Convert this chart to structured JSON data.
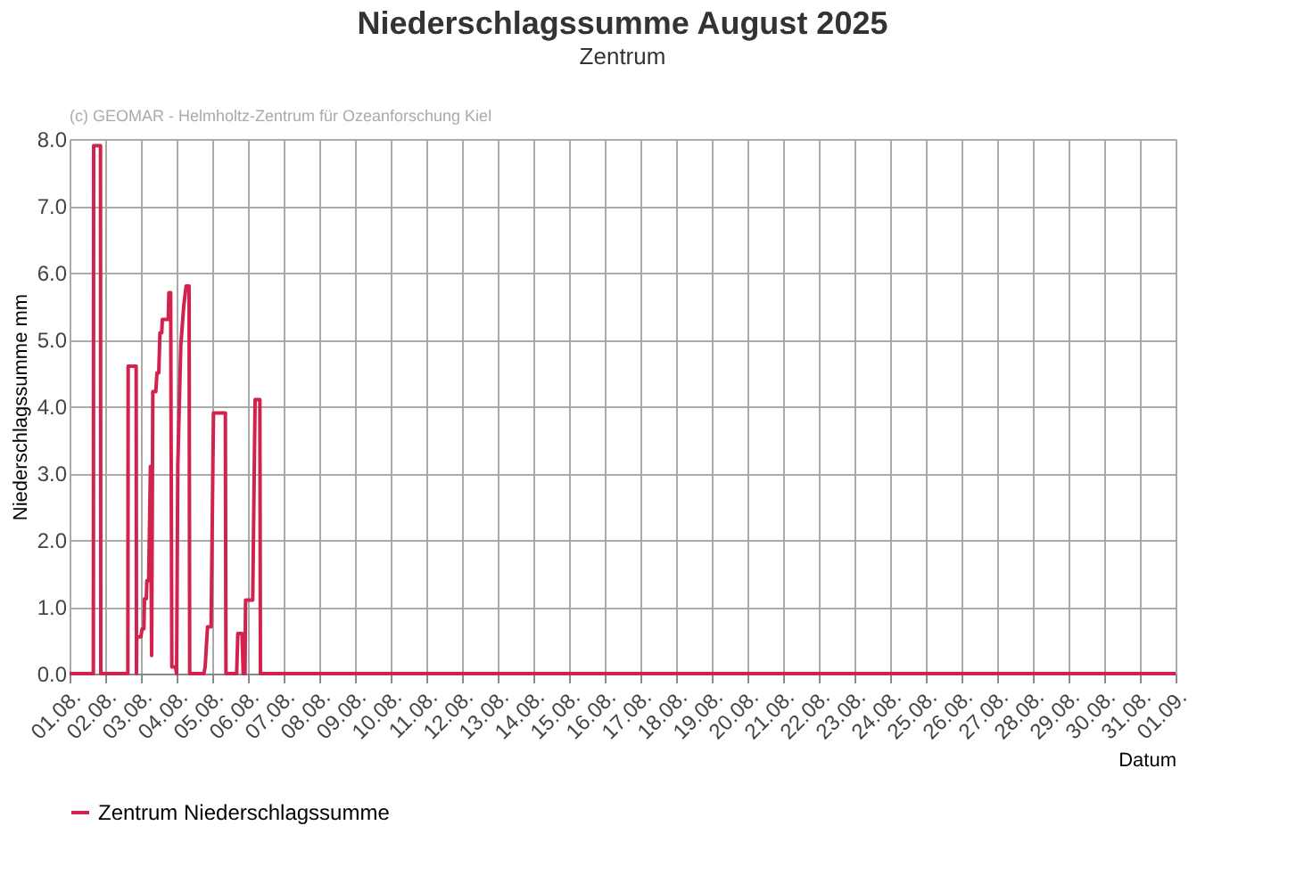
{
  "chart_data": {
    "type": "line",
    "title": "Niederschlagssumme August 2025",
    "subtitle": "Zentrum",
    "xlabel": "Datum",
    "ylabel": "Niederschlagssumme mm",
    "annotations": [
      "(c) GEOMAR - Helmholtz-Zentrum für Ozeanforschung Kiel"
    ],
    "x": [
      "2025-08-01T00:00",
      "2025-08-01T16:00",
      "2025-08-01T16:12",
      "2025-08-01T20:48",
      "2025-08-01T21:00",
      "2025-08-02T15:12",
      "2025-08-02T15:24",
      "2025-08-02T20:48",
      "2025-08-02T21:00",
      "2025-08-02T21:12",
      "2025-08-03T00:00",
      "2025-08-03T00:48",
      "2025-08-03T02:00",
      "2025-08-03T02:24",
      "2025-08-03T03:36",
      "2025-08-03T04:00",
      "2025-08-03T05:12",
      "2025-08-03T06:24",
      "2025-08-03T07:12",
      "2025-08-03T08:00",
      "2025-08-03T10:00",
      "2025-08-03T10:48",
      "2025-08-03T12:00",
      "2025-08-03T12:48",
      "2025-08-03T14:00",
      "2025-08-03T14:24",
      "2025-08-03T18:24",
      "2025-08-03T18:48",
      "2025-08-03T20:00",
      "2025-08-03T20:48",
      "2025-08-03T23:12",
      "2025-08-04T00:00",
      "2025-08-04T00:48",
      "2025-08-04T02:48",
      "2025-08-04T04:48",
      "2025-08-04T06:24",
      "2025-08-04T08:24",
      "2025-08-04T08:48",
      "2025-08-04T18:24",
      "2025-08-04T19:12",
      "2025-08-04T20:48",
      "2025-08-04T23:12",
      "2025-08-05T00:48",
      "2025-08-05T08:48",
      "2025-08-05T09:12",
      "2025-08-05T16:24",
      "2025-08-05T17:12",
      "2025-08-05T20:00",
      "2025-08-05T20:48",
      "2025-08-05T22:00",
      "2025-08-05T22:24",
      "2025-08-06T03:12",
      "2025-08-06T04:48",
      "2025-08-06T08:00",
      "2025-08-06T08:24",
      "2025-09-01T00:00"
    ],
    "series": [
      {
        "name": "Zentrum Niederschlagssumme",
        "color": "#d2224e",
        "values": [
          0,
          0,
          7.9,
          7.9,
          0,
          0,
          4.6,
          4.6,
          0,
          0.55,
          0.55,
          0.67,
          0.67,
          1.12,
          1.12,
          1.39,
          1.39,
          3.1,
          0.27,
          4.22,
          4.22,
          4.5,
          4.5,
          5.1,
          5.1,
          5.3,
          5.3,
          5.7,
          5.7,
          0.1,
          0.1,
          0,
          3.1,
          4.9,
          5.5,
          5.8,
          5.8,
          0,
          0,
          0.1,
          0.7,
          0.7,
          3.9,
          3.9,
          0,
          0,
          0.6,
          0.6,
          0,
          0,
          1.1,
          1.1,
          4.1,
          4.1,
          0,
          0
        ]
      }
    ],
    "xlim": [
      "2025-08-01T00:00",
      "2025-09-01T00:00"
    ],
    "xticks": [
      {
        "value": "2025-08-01",
        "label": "01.08."
      },
      {
        "value": "2025-08-02",
        "label": "02.08."
      },
      {
        "value": "2025-08-03",
        "label": "03.08."
      },
      {
        "value": "2025-08-04",
        "label": "04.08."
      },
      {
        "value": "2025-08-05",
        "label": "05.08."
      },
      {
        "value": "2025-08-06",
        "label": "06.08."
      },
      {
        "value": "2025-08-07",
        "label": "07.08."
      },
      {
        "value": "2025-08-08",
        "label": "08.08."
      },
      {
        "value": "2025-08-09",
        "label": "09.08."
      },
      {
        "value": "2025-08-10",
        "label": "10.08."
      },
      {
        "value": "2025-08-11",
        "label": "11.08."
      },
      {
        "value": "2025-08-12",
        "label": "12.08."
      },
      {
        "value": "2025-08-13",
        "label": "13.08."
      },
      {
        "value": "2025-08-14",
        "label": "14.08."
      },
      {
        "value": "2025-08-15",
        "label": "15.08."
      },
      {
        "value": "2025-08-16",
        "label": "16.08."
      },
      {
        "value": "2025-08-17",
        "label": "17.08."
      },
      {
        "value": "2025-08-18",
        "label": "18.08."
      },
      {
        "value": "2025-08-19",
        "label": "19.08."
      },
      {
        "value": "2025-08-20",
        "label": "20.08."
      },
      {
        "value": "2025-08-21",
        "label": "21.08."
      },
      {
        "value": "2025-08-22",
        "label": "22.08."
      },
      {
        "value": "2025-08-23",
        "label": "23.08."
      },
      {
        "value": "2025-08-24",
        "label": "24.08."
      },
      {
        "value": "2025-08-25",
        "label": "25.08."
      },
      {
        "value": "2025-08-26",
        "label": "26.08."
      },
      {
        "value": "2025-08-27",
        "label": "27.08."
      },
      {
        "value": "2025-08-28",
        "label": "28.08."
      },
      {
        "value": "2025-08-29",
        "label": "29.08."
      },
      {
        "value": "2025-08-30",
        "label": "30.08."
      },
      {
        "value": "2025-08-31",
        "label": "31.08."
      },
      {
        "value": "2025-09-01",
        "label": "01.09."
      }
    ],
    "ylim": [
      0,
      8
    ],
    "yticks": [
      {
        "value": 0,
        "label": "0.0"
      },
      {
        "value": 1,
        "label": "1.0"
      },
      {
        "value": 2,
        "label": "2.0"
      },
      {
        "value": 3,
        "label": "3.0"
      },
      {
        "value": 4,
        "label": "4.0"
      },
      {
        "value": 5,
        "label": "5.0"
      },
      {
        "value": 6,
        "label": "6.0"
      },
      {
        "value": 7,
        "label": "7.0"
      },
      {
        "value": 8,
        "label": "8.0"
      }
    ],
    "grid": true,
    "legend": "bottom",
    "marker": "none",
    "line_style": "solid"
  }
}
